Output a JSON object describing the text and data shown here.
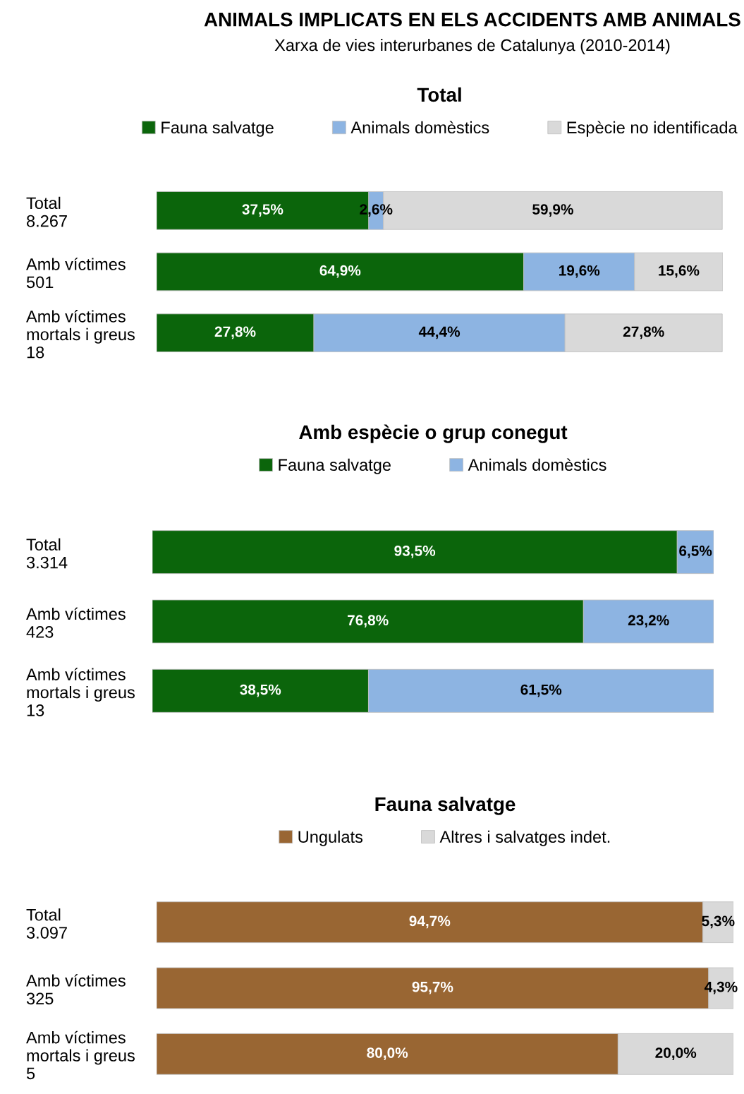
{
  "chart_data": [
    {
      "type": "bar",
      "orientation": "horizontal",
      "stacked": true,
      "title": "Total",
      "data_labels": true,
      "legend": "top",
      "grid": false,
      "annotations": [
        "ANIMALS IMPLICATS EN ELS ACCIDENTS AMB ANIMALS",
        "Xarxa de vies interurbanes de Catalunya (2010-2014)"
      ],
      "categories": [
        "Total\n8.267",
        "Amb víctimes\n501",
        "Amb víctimes\nmortals i greus\n18"
      ],
      "series": [
        {
          "name": "Fauna salvatge",
          "color": "#0b650b",
          "values": [
            37.5,
            64.9,
            27.8
          ],
          "value_labels": [
            "37,5%",
            "64,9%",
            "27,8%"
          ]
        },
        {
          "name": "Animals domèstics",
          "color": "#8db4e2",
          "values": [
            2.6,
            19.6,
            44.4
          ],
          "value_labels": [
            "2,6%",
            "19,6%",
            "44,4%"
          ]
        },
        {
          "name": "Espècie no identificada",
          "color": "#d9d9d9",
          "values": [
            59.9,
            15.6,
            27.8
          ],
          "value_labels": [
            "59,9%",
            "15,6%",
            "27,8%"
          ]
        }
      ]
    },
    {
      "type": "bar",
      "orientation": "horizontal",
      "stacked": true,
      "title": "Amb espècie o grup conegut",
      "data_labels": true,
      "legend": "top",
      "grid": false,
      "categories": [
        "Total\n3.314",
        "Amb víctimes\n423",
        "Amb víctimes\nmortals i greus\n13"
      ],
      "series": [
        {
          "name": "Fauna salvatge",
          "color": "#0b650b",
          "values": [
            93.5,
            76.8,
            38.5
          ],
          "value_labels": [
            "93,5%",
            "76,8%",
            "38,5%"
          ]
        },
        {
          "name": "Animals domèstics",
          "color": "#8db4e2",
          "values": [
            6.5,
            23.2,
            61.5
          ],
          "value_labels": [
            "6,5%",
            "23,2%",
            "61,5%"
          ]
        }
      ]
    },
    {
      "type": "bar",
      "orientation": "horizontal",
      "stacked": true,
      "title": "Fauna salvatge",
      "data_labels": true,
      "legend": "top",
      "grid": false,
      "categories": [
        "Total\n3.097",
        "Amb víctimes\n325",
        "Amb víctimes\nmortals i greus\n5"
      ],
      "series": [
        {
          "name": "Ungulats",
          "color": "#996633",
          "values": [
            94.7,
            95.7,
            80.0
          ],
          "value_labels": [
            "94,7%",
            "95,7%",
            "80,0%"
          ]
        },
        {
          "name": "Altres i salvatges indet.",
          "color": "#d9d9d9",
          "values": [
            5.3,
            4.3,
            20.0
          ],
          "value_labels": [
            "5,3%",
            "4,3%",
            "20,0%"
          ]
        }
      ]
    }
  ]
}
